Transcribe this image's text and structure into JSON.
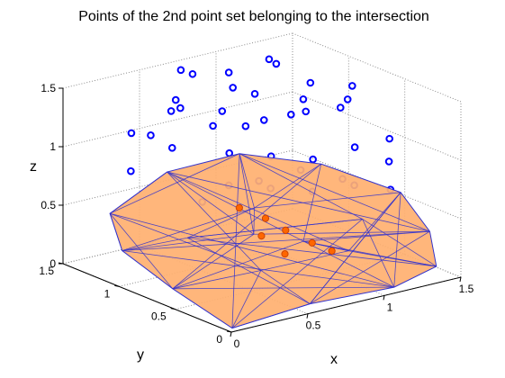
{
  "chart_data": {
    "type": "scatter3d",
    "title": "Points of the 2nd point set belonging to the intersection",
    "xlabel": "x",
    "ylabel": "y",
    "zlabel": "z",
    "xlim": [
      0,
      1.5
    ],
    "ylim": [
      0,
      1.5
    ],
    "zlim": [
      0,
      1.5
    ],
    "xticks": [
      "0",
      "0.5",
      "1",
      "1.5"
    ],
    "yticks": [
      "0",
      "0.5",
      "1",
      "1.5"
    ],
    "zticks": [
      "0",
      "0.5",
      "1",
      "1.5"
    ],
    "grid": true,
    "box": true,
    "colors": {
      "outside_points": "#0000ff",
      "intersection_points": "#ff6600",
      "hull_fill": "#ffb070",
      "hull_edges": "#3333cc",
      "grid": "#8c8c8c"
    },
    "series": [
      {
        "marker": "open-circle",
        "points": [
          [
            0.55,
            1.2,
            1.6
          ],
          [
            0.7,
            1.3,
            1.48
          ],
          [
            0.9,
            1.25,
            1.45
          ],
          [
            1.1,
            1.1,
            1.52
          ],
          [
            0.4,
            1.0,
            1.4
          ],
          [
            0.6,
            0.9,
            1.35
          ],
          [
            0.8,
            0.8,
            1.25
          ],
          [
            1.0,
            0.7,
            1.3
          ],
          [
            1.2,
            0.6,
            1.38
          ],
          [
            1.3,
            0.8,
            1.2
          ],
          [
            0.5,
            0.7,
            1.1
          ],
          [
            0.7,
            0.6,
            1.05
          ],
          [
            0.9,
            0.5,
            1.0
          ],
          [
            1.1,
            0.4,
            1.08
          ],
          [
            1.25,
            0.3,
            0.95
          ],
          [
            0.35,
            0.5,
            0.95
          ],
          [
            0.55,
            0.4,
            0.9
          ],
          [
            0.75,
            0.3,
            0.85
          ],
          [
            0.95,
            0.2,
            0.88
          ],
          [
            1.15,
            0.15,
            0.8
          ],
          [
            0.3,
            1.3,
            1.1
          ],
          [
            0.45,
            1.15,
            1.3
          ],
          [
            0.65,
            1.05,
            1.15
          ],
          [
            0.85,
            0.95,
            1.4
          ],
          [
            1.05,
            0.9,
            1.18
          ],
          [
            1.25,
            1.0,
            1.35
          ],
          [
            1.35,
            1.2,
            1.1
          ],
          [
            0.2,
            0.8,
            1.2
          ],
          [
            0.25,
            0.6,
            0.8
          ],
          [
            0.4,
            0.3,
            1.05
          ],
          [
            0.6,
            0.2,
            1.12
          ],
          [
            0.8,
            0.1,
            1.02
          ],
          [
            1.0,
            1.35,
            1.25
          ],
          [
            1.2,
            1.3,
            1.45
          ],
          [
            0.15,
            1.1,
            0.9
          ],
          [
            0.5,
            1.4,
            0.98
          ],
          [
            0.7,
            1.45,
            1.2
          ],
          [
            1.4,
            0.5,
            1.02
          ],
          [
            1.45,
            0.9,
            1.3
          ],
          [
            0.9,
            1.1,
            1.05
          ]
        ]
      },
      {
        "marker": "filled-circle",
        "points": [
          [
            0.58,
            0.72,
            0.6
          ],
          [
            0.7,
            0.65,
            0.5
          ],
          [
            0.6,
            0.55,
            0.42
          ],
          [
            0.78,
            0.58,
            0.4
          ],
          [
            0.88,
            0.48,
            0.3
          ],
          [
            0.68,
            0.45,
            0.28
          ],
          [
            0.95,
            0.4,
            0.24
          ]
        ]
      }
    ]
  }
}
